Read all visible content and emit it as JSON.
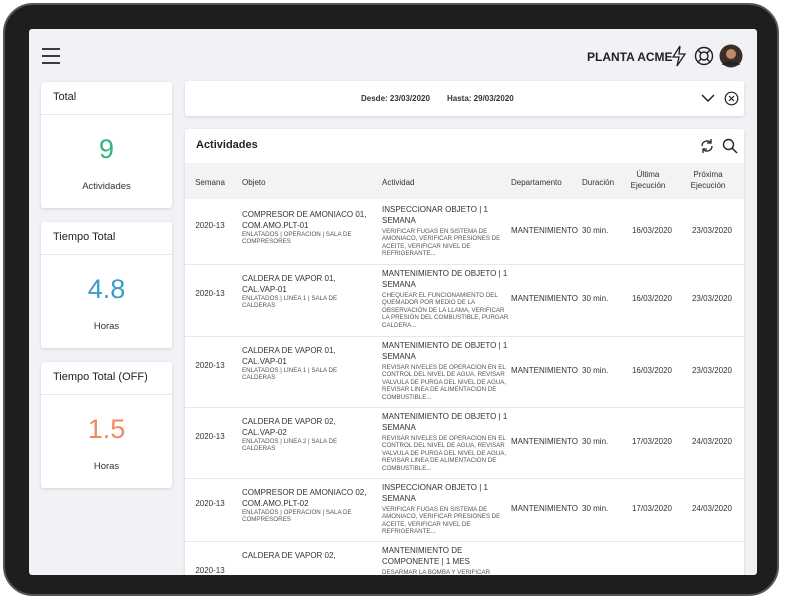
{
  "header": {
    "brand": "PLANTA ACME"
  },
  "cards": [
    {
      "title": "Total",
      "value": 9,
      "unit": "Actividades"
    },
    {
      "title": "Tiempo Total",
      "value": 4.8,
      "unit": "Horas"
    },
    {
      "title": "Tiempo Total (OFF)",
      "value": 1.5,
      "unit": "Horas"
    }
  ],
  "filter": {
    "desde": "Desde: 23/03/2020",
    "hasta": "Hasta: 29/03/2020"
  },
  "table": {
    "title": "Actividades",
    "columns": [
      "Semana",
      "Objeto",
      "Actividad",
      "Departamento",
      "Duración",
      "Última Ejecución",
      "Próxima Ejecución"
    ],
    "rows": [
      {
        "semana": "2020-13",
        "objeto": "COMPRESOR DE AMONIACO 01, COM.AMO.PLT-01",
        "ubicacion": "ENLATADOS | OPERACION | SALA DE COMPRESORES",
        "actividad": "INSPECCIONAR OBJETO | 1 SEMANA",
        "descripcion": "VERIFICAR FUGAS EN SISTEMA DE AMONIACO, VERIFICAR PRESIONES DE ACEITE, VERIFICAR NIVEL DE REFRIGERANTE...",
        "departamento": "MANTENIMIENTO",
        "duracion": "30 min.",
        "ultima": "16/03/2020",
        "proxima": "23/03/2020"
      },
      {
        "semana": "2020-13",
        "objeto": "CALDERA DE VAPOR 01, CAL.VAP-01",
        "ubicacion": "ENLATADOS | LINEA 1 | SALA DE CALDERAS",
        "actividad": "MANTENIMIENTO DE OBJETO | 1 SEMANA",
        "descripcion": "CHEQUEAR EL FUNCIONAMIENTO DEL QUEMADOR POR MEDIO DE LA OBSERVACIÓN DE LA LLAMA, VERIFICAR LA PRESIÓN DEL COMBUSTIBLE, PURGAR CALDERA...",
        "departamento": "MANTENIMIENTO",
        "duracion": "30 min.",
        "ultima": "16/03/2020",
        "proxima": "23/03/2020"
      },
      {
        "semana": "2020-13",
        "objeto": "CALDERA DE VAPOR 01, CAL.VAP-01",
        "ubicacion": "ENLATADOS | LINEA 1 | SALA DE CALDERAS",
        "actividad": "MANTENIMIENTO DE OBJETO | 1 SEMANA",
        "descripcion": "REVISAR NIVELES DE OPERACION EN EL CONTROL DEL NIVEL DE AGUA, REVISAR VALVULA DE PURGA DEL NIVEL DE AGUA, REVISAR LINEA DE ALIMENTACION DE COMBUSTIBLE...",
        "departamento": "MANTENIMIENTO",
        "duracion": "30 min.",
        "ultima": "16/03/2020",
        "proxima": "23/03/2020"
      },
      {
        "semana": "2020-13",
        "objeto": "CALDERA DE VAPOR 02, CAL.VAP-02",
        "ubicacion": "ENLATADOS | LINEA 2 | SALA DE CALDERAS",
        "actividad": "MANTENIMIENTO DE OBJETO | 1 SEMANA",
        "descripcion": "REVISAR NIVELES DE OPERACION EN EL CONTROL DEL NIVEL DE AGUA, REVISAR VALVULA DE PURGA DEL NIVEL DE AGUA, REVISAR LINEA DE ALIMENTACION DE COMBUSTIBLE...",
        "departamento": "MANTENIMIENTO",
        "duracion": "30 min.",
        "ultima": "17/03/2020",
        "proxima": "24/03/2020"
      },
      {
        "semana": "2020-13",
        "objeto": "COMPRESOR DE AMONIACO 02, COM.AMO.PLT-02",
        "ubicacion": "ENLATADOS | OPERACION | SALA DE COMPRESORES",
        "actividad": "INSPECCIONAR OBJETO | 1 SEMANA",
        "descripcion": "VERIFICAR FUGAS EN SISTEMA DE AMONIACO, VERIFICAR PRESIONES DE ACEITE, VERIFICAR NIVEL DE REFRIGERANTE...",
        "departamento": "MANTENIMIENTO",
        "duracion": "30 min.",
        "ultima": "17/03/2020",
        "proxima": "24/03/2020"
      },
      {
        "semana": "2020-13",
        "objeto": "CALDERA DE VAPOR 02,",
        "actividad": "MANTENIMIENTO DE COMPONENTE | 1 MES",
        "descripcion": "DESARMAR LA BOMBA Y VERIFICAR"
      }
    ]
  }
}
